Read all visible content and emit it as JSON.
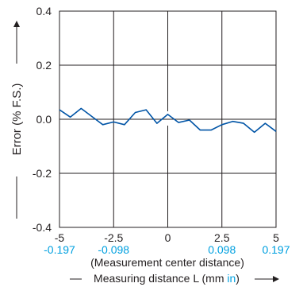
{
  "chart_data": {
    "type": "line",
    "xlabel_sub": "(Measurement center distance)",
    "xlabel_prefix": "Measuring distance L (mm ",
    "xlabel_alt": "in",
    "xlabel_suffix": ")",
    "ylabel": "Error (% F.S.)",
    "xlim": [
      -5,
      5
    ],
    "ylim": [
      -0.4,
      0.4
    ],
    "x_ticks": [
      {
        "value": -5,
        "label": "-5",
        "alt": "-0.197"
      },
      {
        "value": -2.5,
        "label": "-2.5",
        "alt": "-0.098"
      },
      {
        "value": 0,
        "label": "0",
        "alt": ""
      },
      {
        "value": 2.5,
        "label": "2.5",
        "alt": "0.098"
      },
      {
        "value": 5,
        "label": "5",
        "alt": "0.197"
      }
    ],
    "y_ticks": [
      {
        "value": 0.4,
        "label": "0.4"
      },
      {
        "value": 0.2,
        "label": "0.2"
      },
      {
        "value": 0.0,
        "label": "0.0"
      },
      {
        "value": -0.2,
        "label": "-0.2"
      },
      {
        "value": -0.4,
        "label": "-0.4"
      }
    ],
    "grid": true,
    "series": [
      {
        "color": "#0054a6",
        "x": [
          -5.0,
          -4.5,
          -4.0,
          -3.5,
          -3.0,
          -2.5,
          -2.0,
          -1.5,
          -1.0,
          -0.5,
          0.0,
          0.5,
          1.0,
          1.5,
          2.0,
          2.5,
          3.0,
          3.5,
          4.0,
          4.5,
          5.0
        ],
        "y": [
          0.035,
          0.008,
          0.04,
          0.01,
          -0.02,
          -0.01,
          -0.02,
          0.025,
          0.035,
          -0.015,
          0.018,
          -0.012,
          -0.003,
          -0.04,
          -0.04,
          -0.02,
          -0.008,
          -0.015,
          -0.048,
          -0.015,
          -0.045
        ]
      }
    ]
  }
}
